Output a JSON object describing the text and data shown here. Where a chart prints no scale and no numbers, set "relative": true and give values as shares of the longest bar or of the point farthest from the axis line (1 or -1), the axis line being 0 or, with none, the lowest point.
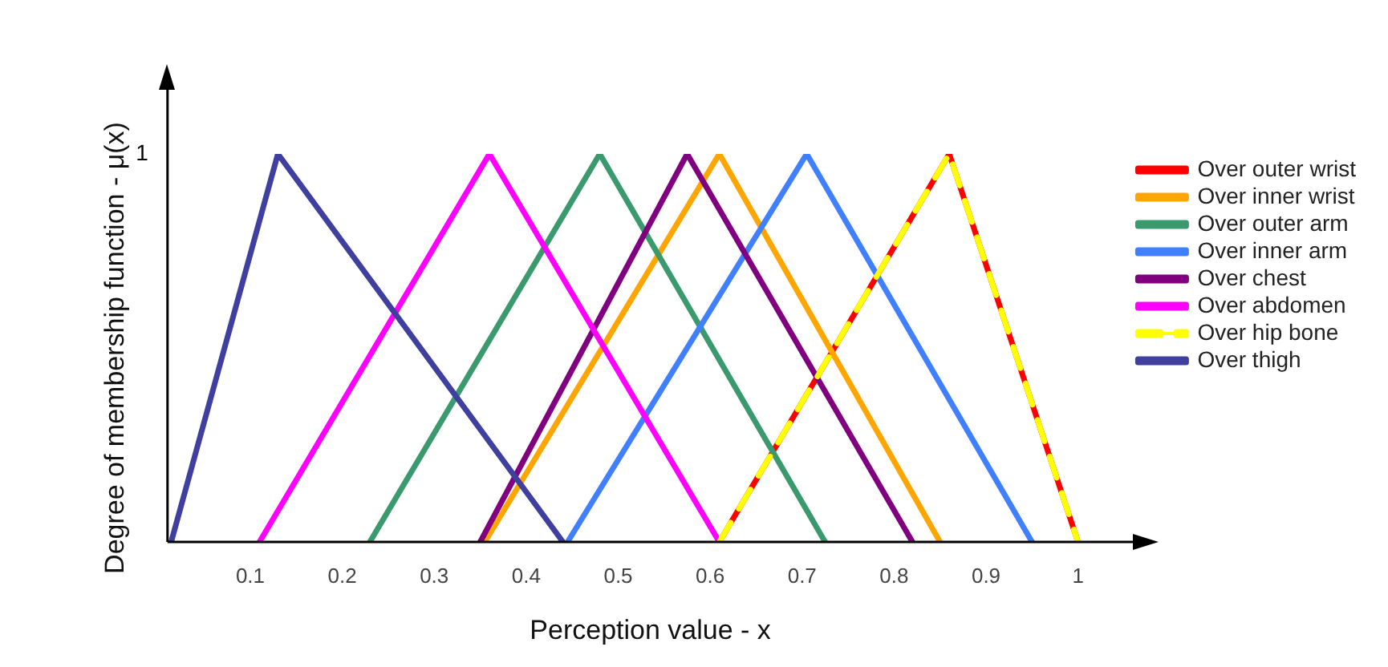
{
  "chart_data": {
    "type": "line",
    "xlabel": "Perception value - x",
    "ylabel": "Degree of membership function - μ(x)",
    "relative": true,
    "xlim": [
      0.01,
      1.06
    ],
    "xticks": [
      0.1,
      0.2,
      0.3,
      0.4,
      0.5,
      0.6,
      0.7,
      0.8,
      0.9,
      1
    ],
    "grid": false,
    "legend": "right",
    "marker": "none",
    "annotations": [
      "1"
    ],
    "series": [
      {
        "name": "Over outer wrist",
        "color": "#ff0000",
        "x": [
          0.61,
          0.86,
          1.0
        ],
        "values": [
          0,
          1,
          0
        ]
      },
      {
        "name": "Over inner wrist",
        "color": "#ffa500",
        "x": [
          0.355,
          0.61,
          0.85
        ],
        "values": [
          0,
          1,
          0
        ]
      },
      {
        "name": "Over outer arm",
        "color": "#3a9a6e",
        "x": [
          0.23,
          0.48,
          0.725
        ],
        "values": [
          0,
          1,
          0
        ]
      },
      {
        "name": "Over inner arm",
        "color": "#4080ff",
        "x": [
          0.445,
          0.705,
          0.95
        ],
        "values": [
          0,
          1,
          0
        ]
      },
      {
        "name": "Over chest",
        "color": "#800080",
        "x": [
          0.35,
          0.575,
          0.82
        ],
        "values": [
          0,
          1,
          0
        ]
      },
      {
        "name": "Over abdomen",
        "color": "#ff00ff",
        "x": [
          0.11,
          0.36,
          0.61
        ],
        "values": [
          0,
          1,
          0
        ]
      },
      {
        "name": "Over hip bone",
        "color": "#ffff00",
        "line_style": "dashed",
        "x": [
          0.61,
          0.86,
          1.0
        ],
        "values": [
          0,
          1,
          0
        ]
      },
      {
        "name": "Over thigh",
        "color": "#3f3f9f",
        "x": [
          0.014,
          0.13,
          0.44
        ],
        "values": [
          0,
          1,
          0
        ]
      }
    ]
  }
}
